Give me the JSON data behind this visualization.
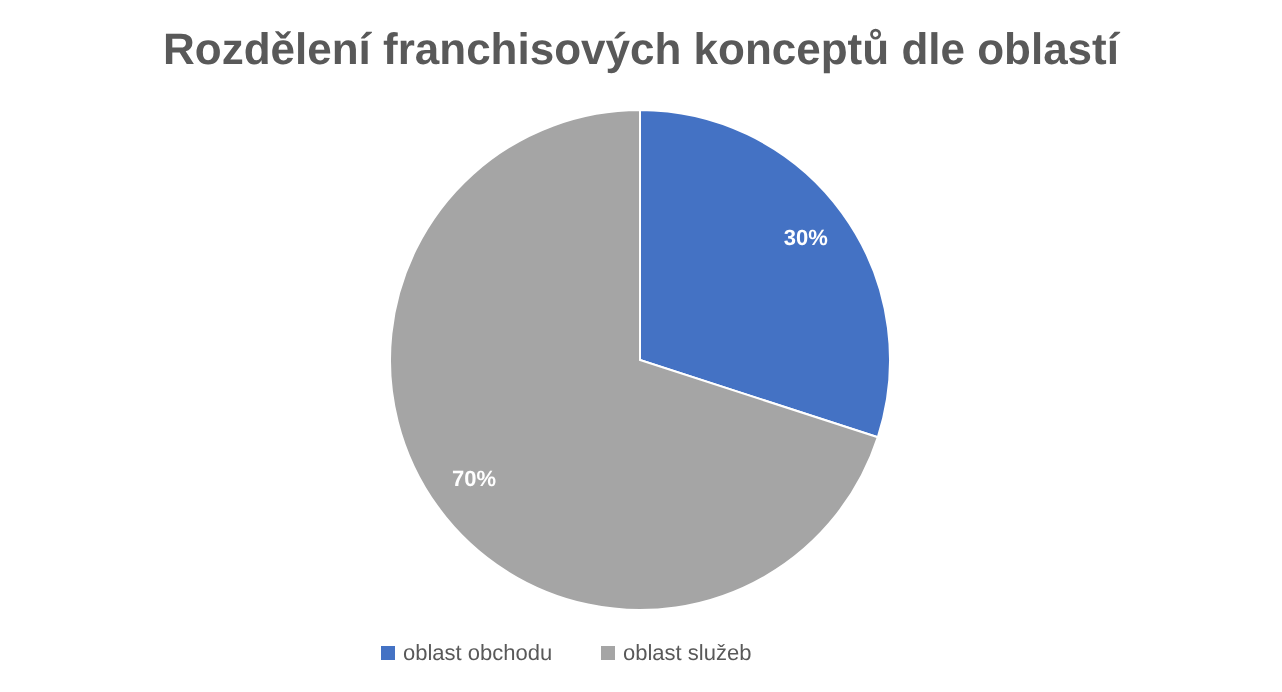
{
  "chart_data": {
    "type": "pie",
    "title": "Rozdělení franchisových konceptů dle oblastí",
    "categories": [
      "oblast obchodu",
      "oblast služeb"
    ],
    "values": [
      30,
      70
    ],
    "colors": [
      "#4472c4",
      "#a5a5a5"
    ],
    "value_labels": [
      "30%",
      "70%"
    ],
    "legend": "bottom"
  }
}
